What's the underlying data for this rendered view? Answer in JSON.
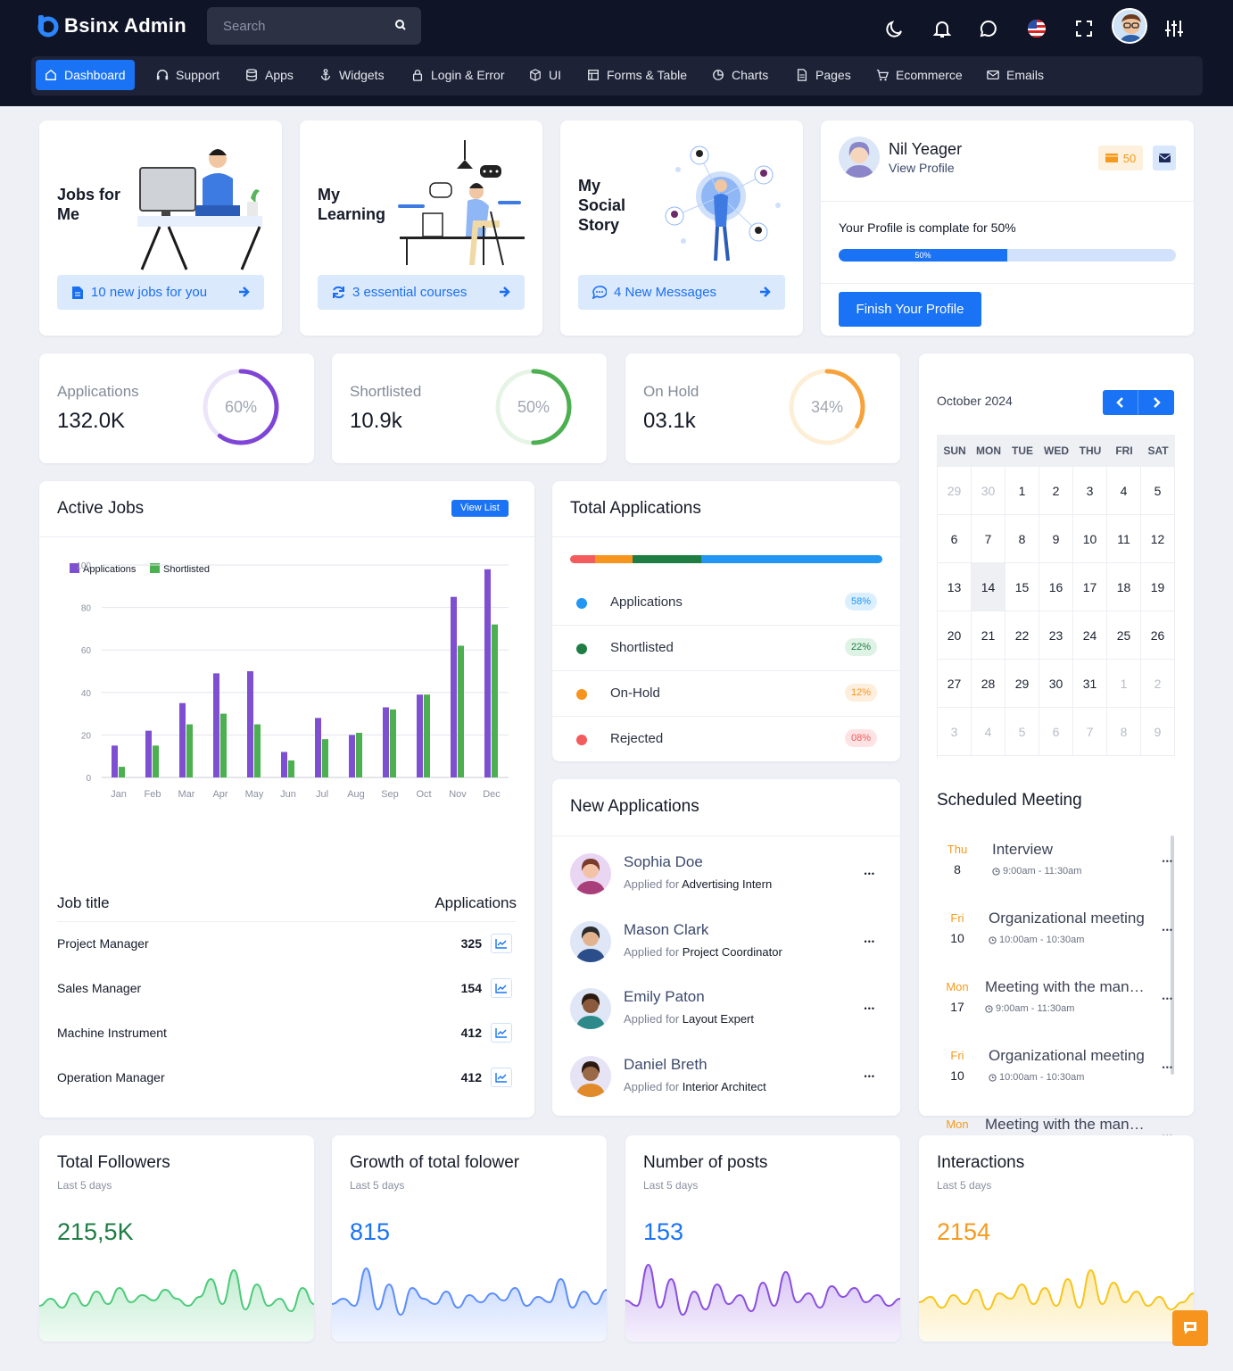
{
  "app": {
    "logo_text": "Bsinx Admin",
    "brand_color": "#1a73f5"
  },
  "search": {
    "placeholder": "Search"
  },
  "header_icons": [
    "moon-icon",
    "bell-icon",
    "chat-icon",
    "us-flag-icon",
    "fullscreen-icon",
    "avatar",
    "settings-sliders-icon"
  ],
  "nav": [
    {
      "label": "Dashboard",
      "icon": "home-icon",
      "active": true
    },
    {
      "label": "Support",
      "icon": "headset-icon"
    },
    {
      "label": "Apps",
      "icon": "database-icon"
    },
    {
      "label": "Widgets",
      "icon": "anchor-icon"
    },
    {
      "label": "Login & Error",
      "icon": "lock-icon"
    },
    {
      "label": "UI",
      "icon": "box-icon"
    },
    {
      "label": "Forms & Table",
      "icon": "table-icon"
    },
    {
      "label": "Charts",
      "icon": "pie-icon"
    },
    {
      "label": "Pages",
      "icon": "file-icon"
    },
    {
      "label": "Ecommerce",
      "icon": "cart-icon"
    },
    {
      "label": "Emails",
      "icon": "mail-icon"
    }
  ],
  "promos": [
    {
      "title": "Jobs for Me",
      "button": "10 new jobs for you",
      "bold": "10",
      "icon": "document-icon"
    },
    {
      "title": "My Learning",
      "button": "3 essential courses",
      "bold": "3",
      "icon": "refresh-icon"
    },
    {
      "title": "My Social Story",
      "button": "4 New Messages",
      "bold": "4",
      "icon": "message-icon"
    }
  ],
  "profile": {
    "name": "Nil Yeager",
    "link": "View Profile",
    "badge": "50",
    "complete_text": "Your Profile is complate for 50%",
    "progress": 50,
    "progress_label": "50%",
    "button": "Finish Your Profile"
  },
  "stats": [
    {
      "label": "Applications",
      "value": "132.0K",
      "percent": 60,
      "percent_label": "60%",
      "color": "#7e45d6"
    },
    {
      "label": "Shortlisted",
      "value": "10.9k",
      "percent": 50,
      "percent_label": "50%",
      "color": "#4caf50"
    },
    {
      "label": "On Hold",
      "value": "03.1k",
      "percent": 34,
      "percent_label": "34%",
      "color": "#f7a23a"
    }
  ],
  "calendar": {
    "month": "October 2024",
    "days": [
      "SUN",
      "MON",
      "TUE",
      "WED",
      "THU",
      "FRI",
      "SAT"
    ],
    "weeks": [
      [
        "29",
        "30",
        "1",
        "2",
        "3",
        "4",
        "5"
      ],
      [
        "6",
        "7",
        "8",
        "9",
        "10",
        "11",
        "12"
      ],
      [
        "13",
        "14",
        "15",
        "16",
        "17",
        "18",
        "19"
      ],
      [
        "20",
        "21",
        "22",
        "23",
        "24",
        "25",
        "26"
      ],
      [
        "27",
        "28",
        "29",
        "30",
        "31",
        "1",
        "2"
      ],
      [
        "3",
        "4",
        "5",
        "6",
        "7",
        "8",
        "9"
      ]
    ],
    "today": "14"
  },
  "active_jobs": {
    "title": "Active Jobs",
    "button": "View List"
  },
  "chart_data": {
    "type": "bar",
    "categories": [
      "Jan",
      "Feb",
      "Mar",
      "Apr",
      "May",
      "Jun",
      "Jul",
      "Aug",
      "Sep",
      "Oct",
      "Nov",
      "Dec"
    ],
    "series": [
      {
        "name": "Applications",
        "color": "#7e4fd1",
        "values": [
          15,
          22,
          35,
          49,
          50,
          12,
          28,
          20,
          33,
          39,
          85,
          98
        ]
      },
      {
        "name": "Shortlisted",
        "color": "#4caf50",
        "values": [
          5,
          15,
          25,
          30,
          25,
          8,
          18,
          21,
          32,
          39,
          62,
          72
        ]
      }
    ],
    "ylim": [
      0,
      100
    ],
    "yticks": [
      "100",
      "80",
      "60",
      "40",
      "20",
      "0"
    ],
    "grid": true,
    "legend": "top-left"
  },
  "jobs_table": {
    "col1": "Job title",
    "col2": "Applications",
    "rows": [
      {
        "title": "Project Manager",
        "value": "325"
      },
      {
        "title": "Sales Manager",
        "value": "154"
      },
      {
        "title": "Machine Instrument",
        "value": "412"
      },
      {
        "title": "Operation Manager",
        "value": "412"
      }
    ]
  },
  "total_applications": {
    "title": "Total Applications",
    "rows": [
      {
        "label": "Applications",
        "pct": "58%",
        "color": "#2196f3"
      },
      {
        "label": "Shortlisted",
        "pct": "22%",
        "color": "#1e7d43"
      },
      {
        "label": "On-Hold",
        "pct": "12%",
        "color": "#f7941d"
      },
      {
        "label": "Rejected",
        "pct": "08%",
        "color": "#f25c5c"
      }
    ],
    "bar": [
      8,
      12,
      22,
      58
    ]
  },
  "new_applications": {
    "title": "New Applications",
    "rows": [
      {
        "name": "Sophia Doe",
        "applied": "Applied for",
        "role": "Advertising Intern"
      },
      {
        "name": "Mason Clark",
        "applied": "Applied for",
        "role": "Project Coordinator"
      },
      {
        "name": "Emily Paton",
        "applied": "Applied for",
        "role": "Layout Expert"
      },
      {
        "name": "Daniel Breth",
        "applied": "Applied for",
        "role": "Interior Architect"
      }
    ]
  },
  "meetings": {
    "title": "Scheduled Meeting",
    "items": [
      {
        "day": "Thu",
        "num": "8",
        "title": "Interview",
        "time": "9:00am - 11:30am"
      },
      {
        "day": "Fri",
        "num": "10",
        "title": "Organizational meeting",
        "time": "10:00am - 10:30am"
      },
      {
        "day": "Mon",
        "num": "17",
        "title": "Meeting with the manager",
        "time": "9:00am - 11:30am"
      },
      {
        "day": "Fri",
        "num": "10",
        "title": "Organizational meeting",
        "time": "10:00am - 10:30am"
      },
      {
        "day": "Mon",
        "num": "",
        "title": "Meeting with the manager",
        "time": ""
      }
    ]
  },
  "social": [
    {
      "title": "Total Followers",
      "sub": "Last 5 days",
      "value": "215,5K",
      "color": "#1e7d43",
      "wave": "#4ccb7a"
    },
    {
      "title": "Growth of total folower",
      "sub": "Last 5 days",
      "value": "815",
      "color": "#1a73f5",
      "wave": "#5b8dfb"
    },
    {
      "title": "Number of posts",
      "sub": "Last 5 days",
      "value": "153",
      "color": "#1a73f5",
      "wave": "#8b4fe0"
    },
    {
      "title": "Interactions",
      "sub": "Last 5 days",
      "value": "2154",
      "color": "#f59a1c",
      "wave": "#f6c51c"
    }
  ]
}
